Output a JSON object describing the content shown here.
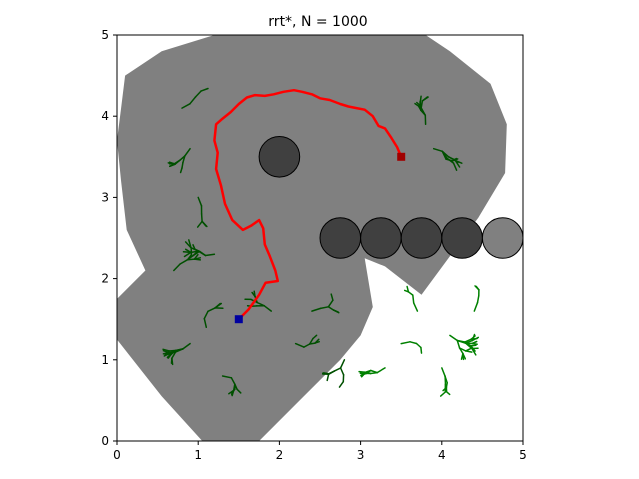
{
  "chart_data": {
    "type": "scatter",
    "title": "rrt*, N = 1000",
    "xlabel": "",
    "ylabel": "",
    "xlim": [
      0,
      5
    ],
    "ylim": [
      0,
      5
    ],
    "xticks": [
      "0",
      "1",
      "2",
      "3",
      "4",
      "5"
    ],
    "yticks": [
      "0",
      "1",
      "2",
      "3",
      "4",
      "5"
    ],
    "grid": false,
    "legend": "none",
    "colors": {
      "explored_region": "#808080",
      "obstacle_dark": "#404040",
      "obstacle_light": "#808080",
      "tree_dark": "#005000",
      "tree_light": "#008000",
      "path": "#ff0000",
      "start": "#0000a0",
      "goal": "#a00000"
    },
    "start": [
      1.5,
      1.5
    ],
    "goal": [
      3.5,
      3.5
    ],
    "obstacles": [
      {
        "x": 2.0,
        "y": 3.5,
        "r": 0.25,
        "shade": "dark"
      },
      {
        "x": 2.75,
        "y": 2.5,
        "r": 0.25,
        "shade": "dark"
      },
      {
        "x": 3.25,
        "y": 2.5,
        "r": 0.25,
        "shade": "dark"
      },
      {
        "x": 3.75,
        "y": 2.5,
        "r": 0.25,
        "shade": "dark"
      },
      {
        "x": 4.25,
        "y": 2.5,
        "r": 0.25,
        "shade": "dark"
      },
      {
        "x": 4.75,
        "y": 2.5,
        "r": 0.25,
        "shade": "light"
      }
    ],
    "explored_region": [
      [
        0.0,
        1.75
      ],
      [
        0.35,
        2.1
      ],
      [
        0.12,
        2.6
      ],
      [
        0.05,
        3.2
      ],
      [
        0.0,
        3.7
      ],
      [
        0.05,
        4.1
      ],
      [
        0.1,
        4.5
      ],
      [
        0.55,
        4.8
      ],
      [
        1.2,
        5.0
      ],
      [
        3.8,
        5.0
      ],
      [
        4.1,
        4.8
      ],
      [
        4.6,
        4.4
      ],
      [
        4.8,
        3.9
      ],
      [
        4.78,
        3.3
      ],
      [
        4.45,
        2.75
      ],
      [
        3.75,
        1.8
      ],
      [
        3.3,
        2.15
      ],
      [
        3.05,
        2.25
      ],
      [
        3.15,
        1.65
      ],
      [
        3.0,
        1.3
      ],
      [
        2.75,
        1.0
      ],
      [
        2.3,
        0.55
      ],
      [
        1.75,
        0.0
      ],
      [
        1.05,
        0.0
      ],
      [
        0.55,
        0.55
      ],
      [
        0.0,
        1.25
      ]
    ],
    "path": [
      [
        1.5,
        1.5
      ],
      [
        1.62,
        1.62
      ],
      [
        1.75,
        1.8
      ],
      [
        1.83,
        1.95
      ],
      [
        1.98,
        1.97
      ],
      [
        1.95,
        2.1
      ],
      [
        1.88,
        2.28
      ],
      [
        1.82,
        2.42
      ],
      [
        1.8,
        2.62
      ],
      [
        1.75,
        2.72
      ],
      [
        1.65,
        2.65
      ],
      [
        1.55,
        2.6
      ],
      [
        1.42,
        2.72
      ],
      [
        1.33,
        2.92
      ],
      [
        1.28,
        3.15
      ],
      [
        1.22,
        3.35
      ],
      [
        1.24,
        3.55
      ],
      [
        1.2,
        3.7
      ],
      [
        1.22,
        3.9
      ],
      [
        1.3,
        3.97
      ],
      [
        1.4,
        4.05
      ],
      [
        1.5,
        4.15
      ],
      [
        1.6,
        4.23
      ],
      [
        1.7,
        4.26
      ],
      [
        1.82,
        4.25
      ],
      [
        1.93,
        4.27
      ],
      [
        2.05,
        4.3
      ],
      [
        2.18,
        4.32
      ],
      [
        2.28,
        4.3
      ],
      [
        2.4,
        4.27
      ],
      [
        2.5,
        4.22
      ],
      [
        2.62,
        4.2
      ],
      [
        2.75,
        4.15
      ],
      [
        2.85,
        4.12
      ],
      [
        2.95,
        4.1
      ],
      [
        3.05,
        4.08
      ],
      [
        3.15,
        4.0
      ],
      [
        3.22,
        3.88
      ],
      [
        3.3,
        3.85
      ],
      [
        3.38,
        3.73
      ],
      [
        3.45,
        3.62
      ],
      [
        3.5,
        3.5
      ]
    ]
  }
}
